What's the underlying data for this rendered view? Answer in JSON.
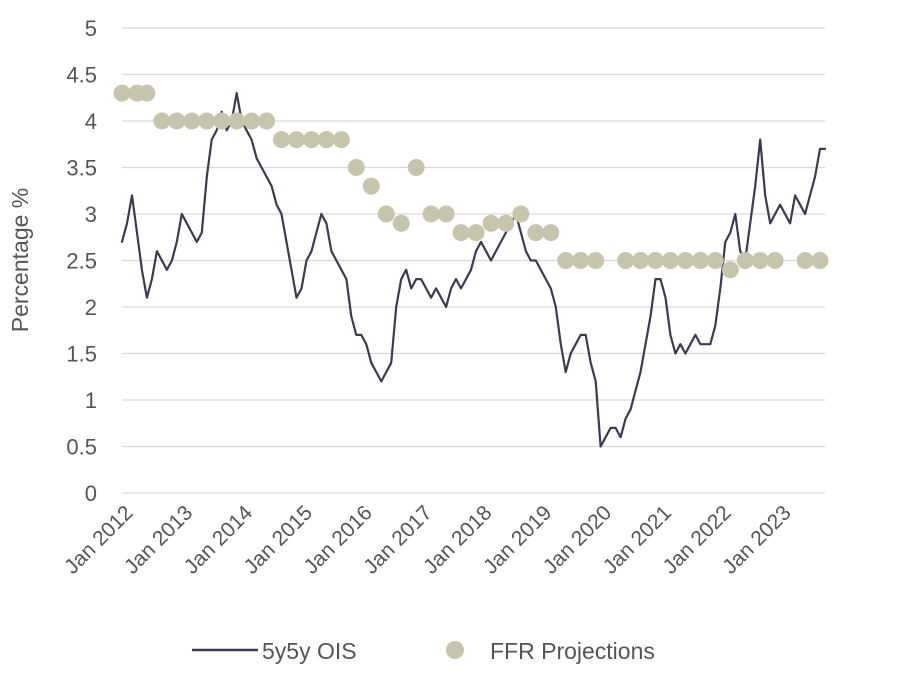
{
  "chart_data": {
    "type": "line",
    "ylabel": "Percentage %",
    "xlabel": "",
    "ylim": [
      0,
      5
    ],
    "yticks": [
      "0",
      "0.5",
      "1",
      "1.5",
      "2",
      "2.5",
      "3",
      "3.5",
      "4",
      "4.5",
      "5"
    ],
    "xticks": [
      "Jan 2012",
      "Jan 2013",
      "Jan 2014",
      "Jan 2015",
      "Jan 2016",
      "Jan 2017",
      "Jan 2018",
      "Jan 2019",
      "Jan 2020",
      "Jan 2021",
      "Jan 2022",
      "Jan 2023"
    ],
    "x_range": [
      "2012-01",
      "2023-10"
    ],
    "grid": true,
    "legend_position": "bottom",
    "colors": {
      "ois": "#3d3a52",
      "ffr": "#c7c4ad",
      "grid": "#d9d9d9",
      "text": "#555555"
    },
    "series": [
      {
        "name": "5y5y OIS",
        "kind": "line",
        "x": [
          "2012-01",
          "2012-02",
          "2012-03",
          "2012-04",
          "2012-05",
          "2012-06",
          "2012-07",
          "2012-08",
          "2012-09",
          "2012-10",
          "2012-11",
          "2012-12",
          "2013-01",
          "2013-02",
          "2013-03",
          "2013-04",
          "2013-05",
          "2013-06",
          "2013-07",
          "2013-08",
          "2013-09",
          "2013-10",
          "2013-11",
          "2013-12",
          "2014-01",
          "2014-02",
          "2014-03",
          "2014-04",
          "2014-05",
          "2014-06",
          "2014-07",
          "2014-08",
          "2014-09",
          "2014-10",
          "2014-11",
          "2014-12",
          "2015-01",
          "2015-02",
          "2015-03",
          "2015-04",
          "2015-05",
          "2015-06",
          "2015-07",
          "2015-08",
          "2015-09",
          "2015-10",
          "2015-11",
          "2015-12",
          "2016-01",
          "2016-02",
          "2016-03",
          "2016-04",
          "2016-05",
          "2016-06",
          "2016-07",
          "2016-08",
          "2016-09",
          "2016-10",
          "2016-11",
          "2016-12",
          "2017-01",
          "2017-02",
          "2017-03",
          "2017-04",
          "2017-05",
          "2017-06",
          "2017-07",
          "2017-08",
          "2017-09",
          "2017-10",
          "2017-11",
          "2017-12",
          "2018-01",
          "2018-02",
          "2018-03",
          "2018-04",
          "2018-05",
          "2018-06",
          "2018-07",
          "2018-08",
          "2018-09",
          "2018-10",
          "2018-11",
          "2018-12",
          "2019-01",
          "2019-02",
          "2019-03",
          "2019-04",
          "2019-05",
          "2019-06",
          "2019-07",
          "2019-08",
          "2019-09",
          "2019-10",
          "2019-11",
          "2019-12",
          "2020-01",
          "2020-02",
          "2020-03",
          "2020-04",
          "2020-05",
          "2020-06",
          "2020-07",
          "2020-08",
          "2020-09",
          "2020-10",
          "2020-11",
          "2020-12",
          "2021-01",
          "2021-02",
          "2021-03",
          "2021-04",
          "2021-05",
          "2021-06",
          "2021-07",
          "2021-08",
          "2021-09",
          "2021-10",
          "2021-11",
          "2021-12",
          "2022-01",
          "2022-02",
          "2022-03",
          "2022-04",
          "2022-05",
          "2022-06",
          "2022-07",
          "2022-08",
          "2022-09",
          "2022-10",
          "2022-11",
          "2022-12",
          "2023-01",
          "2023-02",
          "2023-03",
          "2023-04",
          "2023-05",
          "2023-06",
          "2023-07",
          "2023-08",
          "2023-09",
          "2023-10"
        ],
        "y": [
          2.7,
          2.9,
          3.2,
          2.8,
          2.4,
          2.1,
          2.3,
          2.6,
          2.5,
          2.4,
          2.5,
          2.7,
          3.0,
          2.9,
          2.8,
          2.7,
          2.8,
          3.4,
          3.8,
          3.9,
          4.1,
          3.9,
          4.0,
          4.3,
          4.0,
          3.9,
          3.8,
          3.6,
          3.5,
          3.4,
          3.3,
          3.1,
          3.0,
          2.7,
          2.4,
          2.1,
          2.2,
          2.5,
          2.6,
          2.8,
          3.0,
          2.9,
          2.6,
          2.5,
          2.4,
          2.3,
          1.9,
          1.7,
          1.7,
          1.6,
          1.4,
          1.3,
          1.2,
          1.3,
          1.4,
          2.0,
          2.3,
          2.4,
          2.2,
          2.3,
          2.3,
          2.2,
          2.1,
          2.2,
          2.1,
          2.0,
          2.2,
          2.3,
          2.2,
          2.3,
          2.4,
          2.6,
          2.7,
          2.6,
          2.5,
          2.6,
          2.7,
          2.8,
          2.9,
          3.0,
          2.8,
          2.6,
          2.5,
          2.5,
          2.4,
          2.3,
          2.2,
          2.0,
          1.6,
          1.3,
          1.5,
          1.6,
          1.7,
          1.7,
          1.4,
          1.2,
          0.5,
          0.6,
          0.7,
          0.7,
          0.6,
          0.8,
          0.9,
          1.1,
          1.3,
          1.6,
          1.9,
          2.3,
          2.3,
          2.1,
          1.7,
          1.5,
          1.6,
          1.5,
          1.6,
          1.7,
          1.6,
          1.6,
          1.6,
          1.8,
          2.2,
          2.7,
          2.8,
          3.0,
          2.6,
          2.5,
          2.9,
          3.3,
          3.8,
          3.2,
          2.9,
          3.0,
          3.1,
          3.0,
          2.9,
          3.2,
          3.1,
          3.0,
          3.2,
          3.4,
          3.7,
          3.7
        ]
      },
      {
        "name": "FFR Projections",
        "kind": "scatter",
        "x": [
          "2012-01",
          "2012-04",
          "2012-06",
          "2012-09",
          "2012-12",
          "2013-03",
          "2013-06",
          "2013-09",
          "2013-12",
          "2014-03",
          "2014-06",
          "2014-09",
          "2014-12",
          "2015-03",
          "2015-06",
          "2015-09",
          "2015-12",
          "2016-03",
          "2016-06",
          "2016-09",
          "2016-12",
          "2017-03",
          "2017-06",
          "2017-09",
          "2017-12",
          "2018-03",
          "2018-06",
          "2018-09",
          "2018-12",
          "2019-03",
          "2019-06",
          "2019-09",
          "2019-12",
          "2020-06",
          "2020-09",
          "2020-12",
          "2021-03",
          "2021-06",
          "2021-09",
          "2021-12",
          "2022-03",
          "2022-06",
          "2022-09",
          "2022-12",
          "2023-06",
          "2023-09"
        ],
        "y": [
          4.3,
          4.3,
          4.3,
          4.0,
          4.0,
          4.0,
          4.0,
          4.0,
          4.0,
          4.0,
          4.0,
          3.8,
          3.8,
          3.8,
          3.8,
          3.8,
          3.5,
          3.3,
          3.0,
          2.9,
          3.5,
          3.0,
          3.0,
          2.8,
          2.8,
          2.9,
          2.9,
          3.0,
          2.8,
          2.8,
          2.5,
          2.5,
          2.5,
          2.5,
          2.5,
          2.5,
          2.5,
          2.5,
          2.5,
          2.5,
          2.4,
          2.5,
          2.5,
          2.5,
          2.5,
          2.5
        ]
      }
    ]
  }
}
